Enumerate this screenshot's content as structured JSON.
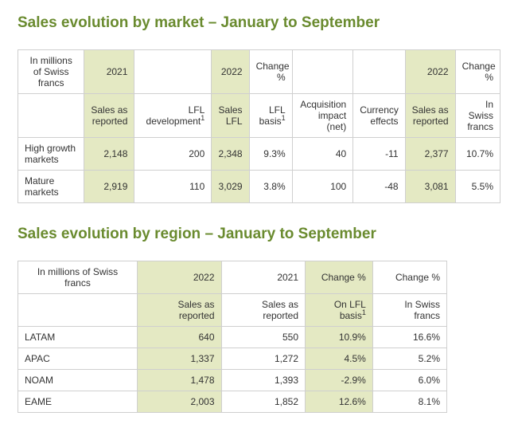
{
  "colors": {
    "heading": "#6a8b2f",
    "highlight_bg": "#e4e9c3",
    "border": "#cfcfcf",
    "text": "#333333",
    "background": "#ffffff"
  },
  "typography": {
    "heading_fontsize_pt": 14,
    "body_fontsize_pt": 9,
    "font_family": "Segoe UI / Helvetica Neue"
  },
  "section1": {
    "title": "Sales evolution by market – January to September",
    "unit_label": "In millions of Swiss francs",
    "top_headers": {
      "y2021": "2021",
      "y2022a": "2022",
      "change_pct": "Change %",
      "y2022b": "2022",
      "change_pct2": "Change %"
    },
    "sub_headers": {
      "sales_as_reported": "Sales as reported",
      "lfl_dev": "LFL development",
      "sales_lfl": "Sales LFL",
      "lfl_basis": "LFL basis",
      "acq_impact": "Acquisition impact (net)",
      "currency_effects": "Currency effects",
      "sales_as_reported2": "Sales as reported",
      "in_swiss_francs": "In Swiss francs"
    },
    "footnote_marker": "1",
    "rows": [
      {
        "label": "High growth markets",
        "sales_2021": "2,148",
        "lfl_dev": "200",
        "sales_lfl": "2,348",
        "lfl_basis_pct": "9.3%",
        "acq_impact": "40",
        "currency": "-11",
        "sales_2022": "2,377",
        "chf_pct": "10.7%"
      },
      {
        "label": "Mature markets",
        "sales_2021": "2,919",
        "lfl_dev": "110",
        "sales_lfl": "3,029",
        "lfl_basis_pct": "3.8%",
        "acq_impact": "100",
        "currency": "-48",
        "sales_2022": "3,081",
        "chf_pct": "5.5%"
      }
    ]
  },
  "section2": {
    "title": "Sales evolution by region – January to September",
    "unit_label": "In millions of Swiss francs",
    "top_headers": {
      "y2022": "2022",
      "y2021": "2021",
      "change_pct": "Change %",
      "change_pct2": "Change %"
    },
    "sub_headers": {
      "sales_as_reported": "Sales as reported",
      "sales_as_reported2": "Sales as reported",
      "on_lfl_basis": "On LFL basis",
      "in_swiss_francs": "In Swiss francs"
    },
    "footnote_marker": "1",
    "rows": [
      {
        "label": "LATAM",
        "v2022": "640",
        "v2021": "550",
        "lfl_pct": "10.9%",
        "chf_pct": "16.6%"
      },
      {
        "label": "APAC",
        "v2022": "1,337",
        "v2021": "1,272",
        "lfl_pct": "4.5%",
        "chf_pct": "5.2%"
      },
      {
        "label": "NOAM",
        "v2022": "1,478",
        "v2021": "1,393",
        "lfl_pct": "-2.9%",
        "chf_pct": "6.0%"
      },
      {
        "label": "EAME",
        "v2022": "2,003",
        "v2021": "1,852",
        "lfl_pct": "12.6%",
        "chf_pct": "8.1%"
      }
    ]
  }
}
